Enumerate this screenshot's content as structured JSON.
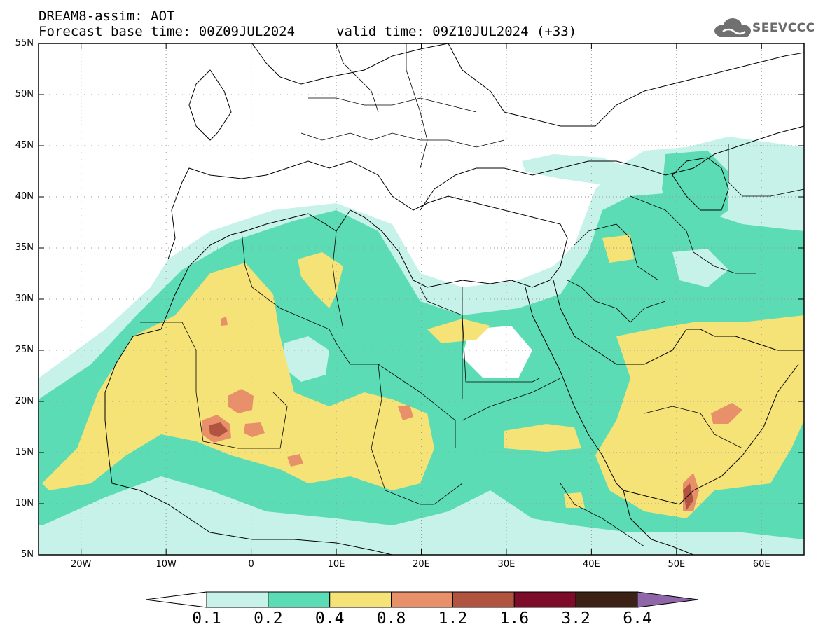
{
  "header": {
    "title_line1": "DREAM8-assim: AOT",
    "title_line2": "Forecast base time: 00Z09JUL2024",
    "valid_time": "valid time: 09Z10JUL2024 (+33)",
    "logo_text": "SEEVCCC"
  },
  "map": {
    "extent": {
      "lon_min": -25,
      "lon_max": 65,
      "lat_min": 5,
      "lat_max": 55
    },
    "lat_ticks": [
      {
        "value": 55,
        "label": "55N"
      },
      {
        "value": 50,
        "label": "50N"
      },
      {
        "value": 45,
        "label": "45N"
      },
      {
        "value": 40,
        "label": "40N"
      },
      {
        "value": 35,
        "label": "35N"
      },
      {
        "value": 30,
        "label": "30N"
      },
      {
        "value": 25,
        "label": "25N"
      },
      {
        "value": 20,
        "label": "20N"
      },
      {
        "value": 15,
        "label": "15N"
      },
      {
        "value": 10,
        "label": "10N"
      },
      {
        "value": 5,
        "label": "5N"
      }
    ],
    "lon_ticks": [
      {
        "value": -20,
        "label": "20W"
      },
      {
        "value": -10,
        "label": "10W"
      },
      {
        "value": 0,
        "label": "0"
      },
      {
        "value": 10,
        "label": "10E"
      },
      {
        "value": 20,
        "label": "20E"
      },
      {
        "value": 30,
        "label": "30E"
      },
      {
        "value": 40,
        "label": "40E"
      },
      {
        "value": 50,
        "label": "50E"
      },
      {
        "value": 60,
        "label": "60E"
      }
    ],
    "gridlines": "dotted"
  },
  "legend": {
    "levels": [
      "0.1",
      "0.2",
      "0.4",
      "0.8",
      "1.2",
      "1.6",
      "3.2",
      "6.4"
    ],
    "colors": [
      "#ffffff",
      "#c6f2ea",
      "#5cdcb4",
      "#f5e378",
      "#e8906a",
      "#b0533f",
      "#7d0b2a",
      "#3c2214",
      "#8f67a8"
    ]
  }
}
